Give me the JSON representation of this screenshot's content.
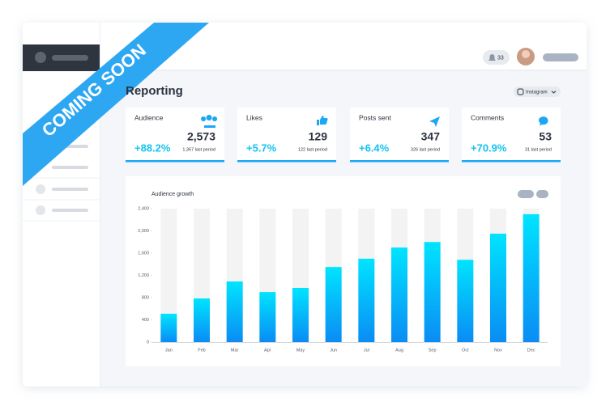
{
  "banner": "COMING SOON",
  "header": {
    "notifications": "33"
  },
  "page": {
    "title": "Reporting",
    "platform": "Instagram"
  },
  "cards": [
    {
      "label": "Audience",
      "value": "2,573",
      "change": "+88.2%",
      "previous": "1,367 last period"
    },
    {
      "label": "Likes",
      "value": "129",
      "change": "+5.7%",
      "previous": "122 last period"
    },
    {
      "label": "Posts sent",
      "value": "347",
      "change": "+6.4%",
      "previous": "326 last period"
    },
    {
      "label": "Comments",
      "value": "53",
      "change": "+70.9%",
      "previous": "31 last period"
    }
  ],
  "chart_data": {
    "type": "bar",
    "title": "Audience growth",
    "categories": [
      "Jan",
      "Feb",
      "Mar",
      "Apr",
      "May",
      "Jun",
      "Jul",
      "Aug",
      "Sep",
      "Oct",
      "Nov",
      "Dec"
    ],
    "values": [
      510,
      785,
      1090,
      900,
      975,
      1350,
      1500,
      1700,
      1800,
      1480,
      1950,
      2300
    ],
    "color": "#0fbcfb",
    "ylim": [
      0,
      2400
    ],
    "yticks": [
      0,
      400,
      800,
      {
        "value": 1200,
        "label": "1,200"
      },
      {
        "value": 1600,
        "label": "1,600"
      },
      {
        "value": 2000,
        "label": "2,000"
      },
      {
        "value": 2400,
        "label": "2,400"
      }
    ],
    "grid": false
  }
}
